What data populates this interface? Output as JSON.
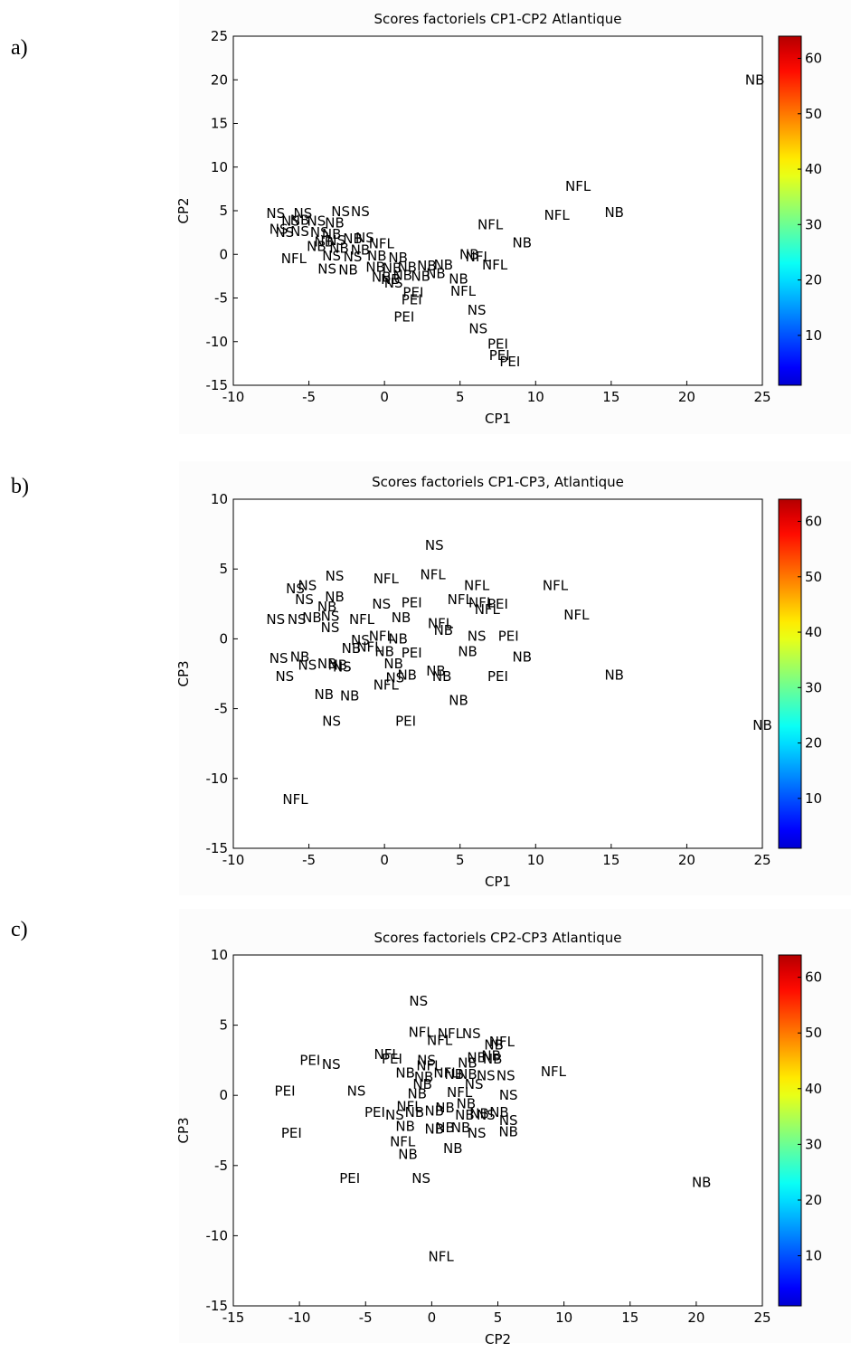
{
  "panels": [
    {
      "letter": "a)"
    },
    {
      "letter": "b)"
    },
    {
      "letter": "c)"
    }
  ],
  "chart_data": [
    {
      "type": "scatter",
      "title": "Scores factoriels CP1-CP2 Atlantique",
      "xlabel": "CP1",
      "ylabel": "CP2",
      "xlim": [
        -10,
        25
      ],
      "ylim": [
        -15,
        25
      ],
      "xticks": [
        -10,
        -5,
        0,
        5,
        10,
        15,
        20,
        25
      ],
      "yticks": [
        -15,
        -10,
        -5,
        0,
        5,
        10,
        15,
        20,
        25
      ],
      "colorbar": {
        "colormap": "jet",
        "range": [
          1,
          64
        ],
        "ticks": [
          10,
          20,
          30,
          40,
          50,
          60
        ]
      },
      "points": [
        {
          "label": "NB",
          "x": 24.5,
          "y": 20
        },
        {
          "label": "NFL",
          "x": 12.8,
          "y": 7.8
        },
        {
          "label": "NFL",
          "x": 11.4,
          "y": 4.5
        },
        {
          "label": "NB",
          "x": 15.2,
          "y": 4.8
        },
        {
          "label": "NFL",
          "x": 7.0,
          "y": 3.4
        },
        {
          "label": "NB",
          "x": 9.1,
          "y": 1.3
        },
        {
          "label": "NB",
          "x": 5.6,
          "y": 0.0
        },
        {
          "label": "NFL",
          "x": 6.2,
          "y": -0.3
        },
        {
          "label": "NFL",
          "x": 7.3,
          "y": -1.2
        },
        {
          "label": "NB",
          "x": 4.9,
          "y": -2.8
        },
        {
          "label": "NFL",
          "x": 5.2,
          "y": -4.2
        },
        {
          "label": "NS",
          "x": 6.1,
          "y": -6.4
        },
        {
          "label": "NS",
          "x": 6.2,
          "y": -8.5
        },
        {
          "label": "PEI",
          "x": 7.5,
          "y": -10.3
        },
        {
          "label": "PEI",
          "x": 7.6,
          "y": -11.6
        },
        {
          "label": "PEI",
          "x": 8.3,
          "y": -12.3
        },
        {
          "label": "NS",
          "x": -7.2,
          "y": 4.7
        },
        {
          "label": "NS",
          "x": -5.4,
          "y": 4.7
        },
        {
          "label": "NS",
          "x": -2.9,
          "y": 4.9
        },
        {
          "label": "NS",
          "x": -1.6,
          "y": 4.9
        },
        {
          "label": "NS",
          "x": -6.2,
          "y": 3.8
        },
        {
          "label": "NB",
          "x": -5.6,
          "y": 3.9
        },
        {
          "label": "NS",
          "x": -4.5,
          "y": 3.8
        },
        {
          "label": "NB",
          "x": -3.3,
          "y": 3.6
        },
        {
          "label": "NS",
          "x": -6.6,
          "y": 2.5
        },
        {
          "label": "NS",
          "x": -7.0,
          "y": 2.9
        },
        {
          "label": "NS",
          "x": -5.6,
          "y": 2.6
        },
        {
          "label": "NS",
          "x": -4.3,
          "y": 2.5
        },
        {
          "label": "NB",
          "x": -3.5,
          "y": 2.3
        },
        {
          "label": "NB",
          "x": -4.0,
          "y": 1.4
        },
        {
          "label": "NS",
          "x": -3.2,
          "y": 1.6
        },
        {
          "label": "NB",
          "x": -2.1,
          "y": 1.8
        },
        {
          "label": "NS",
          "x": -1.3,
          "y": 1.9
        },
        {
          "label": "NFL",
          "x": -0.2,
          "y": 1.2
        },
        {
          "label": "NB",
          "x": -4.5,
          "y": 0.9
        },
        {
          "label": "NB",
          "x": -3.0,
          "y": 0.7
        },
        {
          "label": "NB",
          "x": -1.6,
          "y": 0.5
        },
        {
          "label": "NFL",
          "x": -6.0,
          "y": -0.5
        },
        {
          "label": "NS",
          "x": -3.5,
          "y": -0.2
        },
        {
          "label": "NS",
          "x": -2.1,
          "y": -0.3
        },
        {
          "label": "NB",
          "x": -0.5,
          "y": -0.2
        },
        {
          "label": "NB",
          "x": 0.9,
          "y": -0.4
        },
        {
          "label": "NS",
          "x": -3.8,
          "y": -1.7
        },
        {
          "label": "NB",
          "x": -2.4,
          "y": -1.8
        },
        {
          "label": "NB",
          "x": -0.6,
          "y": -1.5
        },
        {
          "label": "NB",
          "x": 0.5,
          "y": -1.6
        },
        {
          "label": "NB",
          "x": 1.5,
          "y": -1.5
        },
        {
          "label": "NB",
          "x": 2.8,
          "y": -1.3
        },
        {
          "label": "NB",
          "x": 3.9,
          "y": -1.2
        },
        {
          "label": "NB",
          "x": -0.2,
          "y": -2.6
        },
        {
          "label": "NB",
          "x": 0.4,
          "y": -2.9
        },
        {
          "label": "NB",
          "x": 1.2,
          "y": -2.4
        },
        {
          "label": "NB",
          "x": 2.4,
          "y": -2.5
        },
        {
          "label": "NB",
          "x": 3.4,
          "y": -2.2
        },
        {
          "label": "NS",
          "x": 0.6,
          "y": -3.3
        },
        {
          "label": "PEI",
          "x": 1.9,
          "y": -4.4
        },
        {
          "label": "PEI",
          "x": 1.8,
          "y": -5.2
        },
        {
          "label": "PEI",
          "x": 1.3,
          "y": -7.2
        }
      ]
    },
    {
      "type": "scatter",
      "title": "Scores factoriels CP1-CP3, Atlantique",
      "xlabel": "CP1",
      "ylabel": "CP3",
      "xlim": [
        -10,
        25
      ],
      "ylim": [
        -15,
        10
      ],
      "xticks": [
        -10,
        -5,
        0,
        5,
        10,
        15,
        20,
        25
      ],
      "yticks": [
        -15,
        -10,
        -5,
        0,
        5,
        10
      ],
      "colorbar": {
        "colormap": "jet",
        "range": [
          1,
          64
        ],
        "ticks": [
          10,
          20,
          30,
          40,
          50,
          60
        ]
      },
      "points": [
        {
          "label": "NS",
          "x": 3.3,
          "y": 6.7
        },
        {
          "label": "NS",
          "x": -3.3,
          "y": 4.5
        },
        {
          "label": "NFL",
          "x": 0.1,
          "y": 4.3
        },
        {
          "label": "NFL",
          "x": 3.2,
          "y": 4.6
        },
        {
          "label": "NFL",
          "x": 6.1,
          "y": 3.8
        },
        {
          "label": "NFL",
          "x": 11.3,
          "y": 3.8
        },
        {
          "label": "NS",
          "x": -5.9,
          "y": 3.6
        },
        {
          "label": "NS",
          "x": -5.1,
          "y": 3.8
        },
        {
          "label": "NS",
          "x": -5.3,
          "y": 2.8
        },
        {
          "label": "NB",
          "x": -3.3,
          "y": 3.0
        },
        {
          "label": "NB",
          "x": -3.8,
          "y": 2.3
        },
        {
          "label": "NS",
          "x": -0.2,
          "y": 2.5
        },
        {
          "label": "PEI",
          "x": 1.8,
          "y": 2.6
        },
        {
          "label": "NFL",
          "x": 5.0,
          "y": 2.8
        },
        {
          "label": "NFL",
          "x": 6.4,
          "y": 2.6
        },
        {
          "label": "PEI",
          "x": 7.5,
          "y": 2.5
        },
        {
          "label": "NFL",
          "x": 6.8,
          "y": 2.1
        },
        {
          "label": "NFL",
          "x": 12.7,
          "y": 1.7
        },
        {
          "label": "NS",
          "x": -7.2,
          "y": 1.4
        },
        {
          "label": "NS",
          "x": -5.8,
          "y": 1.4
        },
        {
          "label": "NB",
          "x": -4.8,
          "y": 1.5
        },
        {
          "label": "NS",
          "x": -3.6,
          "y": 1.6
        },
        {
          "label": "NFL",
          "x": -1.5,
          "y": 1.4
        },
        {
          "label": "NB",
          "x": 1.1,
          "y": 1.5
        },
        {
          "label": "NFL",
          "x": 3.7,
          "y": 1.1
        },
        {
          "label": "NS",
          "x": -3.6,
          "y": 0.8
        },
        {
          "label": "NB",
          "x": 3.9,
          "y": 0.6
        },
        {
          "label": "NS",
          "x": 6.1,
          "y": 0.2
        },
        {
          "label": "PEI",
          "x": 8.2,
          "y": 0.2
        },
        {
          "label": "NS",
          "x": -1.6,
          "y": -0.1
        },
        {
          "label": "NFL",
          "x": -0.2,
          "y": 0.2
        },
        {
          "label": "NB",
          "x": 0.9,
          "y": 0.0
        },
        {
          "label": "NB",
          "x": -2.2,
          "y": -0.7
        },
        {
          "label": "NFL",
          "x": -1.0,
          "y": -0.6
        },
        {
          "label": "NB",
          "x": 0.0,
          "y": -0.9
        },
        {
          "label": "PEI",
          "x": 1.8,
          "y": -1.0
        },
        {
          "label": "NB",
          "x": 5.5,
          "y": -0.9
        },
        {
          "label": "NB",
          "x": 9.1,
          "y": -1.3
        },
        {
          "label": "NS",
          "x": -7.0,
          "y": -1.4
        },
        {
          "label": "NB",
          "x": -5.6,
          "y": -1.3
        },
        {
          "label": "NS",
          "x": -5.1,
          "y": -1.9
        },
        {
          "label": "NB",
          "x": -3.8,
          "y": -1.8
        },
        {
          "label": "NB",
          "x": -3.1,
          "y": -1.9
        },
        {
          "label": "NS",
          "x": -2.8,
          "y": -2.0
        },
        {
          "label": "NB",
          "x": 0.6,
          "y": -1.8
        },
        {
          "label": "NB",
          "x": 1.5,
          "y": -2.6
        },
        {
          "label": "NB",
          "x": 3.4,
          "y": -2.3
        },
        {
          "label": "NB",
          "x": 3.8,
          "y": -2.7
        },
        {
          "label": "NS",
          "x": -6.6,
          "y": -2.7
        },
        {
          "label": "NS",
          "x": 0.7,
          "y": -2.8
        },
        {
          "label": "PEI",
          "x": 7.5,
          "y": -2.7
        },
        {
          "label": "NB",
          "x": 15.2,
          "y": -2.6
        },
        {
          "label": "NFL",
          "x": 0.1,
          "y": -3.3
        },
        {
          "label": "NB",
          "x": -4.0,
          "y": -4.0
        },
        {
          "label": "NB",
          "x": -2.3,
          "y": -4.1
        },
        {
          "label": "NB",
          "x": 4.9,
          "y": -4.4
        },
        {
          "label": "NS",
          "x": -3.5,
          "y": -5.9
        },
        {
          "label": "PEI",
          "x": 1.4,
          "y": -5.9
        },
        {
          "label": "NB",
          "x": 25.0,
          "y": -6.2
        },
        {
          "label": "NFL",
          "x": -5.9,
          "y": -11.5
        }
      ]
    },
    {
      "type": "scatter",
      "title": "Scores factoriels CP2-CP3 Atlantique",
      "xlabel": "CP2",
      "ylabel": "CP3",
      "xlim": [
        -15,
        25
      ],
      "ylim": [
        -15,
        10
      ],
      "xticks": [
        -15,
        -10,
        -5,
        0,
        5,
        10,
        15,
        20,
        25
      ],
      "yticks": [
        -15,
        -10,
        -5,
        0,
        5,
        10
      ],
      "colorbar": {
        "colormap": "jet",
        "range": [
          1,
          64
        ],
        "ticks": [
          10,
          20,
          30,
          40,
          50,
          60
        ]
      },
      "points": [
        {
          "label": "NS",
          "x": -1.0,
          "y": 6.7
        },
        {
          "label": "NFL",
          "x": -0.8,
          "y": 4.5
        },
        {
          "label": "NFL",
          "x": 0.6,
          "y": 3.9
        },
        {
          "label": "NFL",
          "x": 1.4,
          "y": 4.4
        },
        {
          "label": "NS",
          "x": 3.0,
          "y": 4.4
        },
        {
          "label": "NB",
          "x": 4.7,
          "y": 3.6
        },
        {
          "label": "NFL",
          "x": 5.3,
          "y": 3.8
        },
        {
          "label": "NB",
          "x": 3.4,
          "y": 2.7
        },
        {
          "label": "NB",
          "x": 4.5,
          "y": 2.8
        },
        {
          "label": "PEI",
          "x": -9.2,
          "y": 2.5
        },
        {
          "label": "NS",
          "x": -7.6,
          "y": 2.2
        },
        {
          "label": "NFL",
          "x": -3.4,
          "y": 2.9
        },
        {
          "label": "PEI",
          "x": -3.0,
          "y": 2.6
        },
        {
          "label": "NS",
          "x": -0.4,
          "y": 2.5
        },
        {
          "label": "NFL",
          "x": -0.2,
          "y": 2.1
        },
        {
          "label": "NB",
          "x": 2.7,
          "y": 2.3
        },
        {
          "label": "NB",
          "x": 4.6,
          "y": 2.6
        },
        {
          "label": "NFL",
          "x": 9.2,
          "y": 1.7
        },
        {
          "label": "NB",
          "x": -2.0,
          "y": 1.6
        },
        {
          "label": "NB",
          "x": -0.6,
          "y": 1.3
        },
        {
          "label": "NFL",
          "x": 1.1,
          "y": 1.6
        },
        {
          "label": "NB",
          "x": 1.7,
          "y": 1.5
        },
        {
          "label": "NB",
          "x": 2.7,
          "y": 1.5
        },
        {
          "label": "NS",
          "x": 4.1,
          "y": 1.4
        },
        {
          "label": "NS",
          "x": 5.6,
          "y": 1.4
        },
        {
          "label": "NB",
          "x": -0.7,
          "y": 0.8
        },
        {
          "label": "NS",
          "x": 3.2,
          "y": 0.8
        },
        {
          "label": "PEI",
          "x": -11.1,
          "y": 0.3
        },
        {
          "label": "NS",
          "x": -5.7,
          "y": 0.3
        },
        {
          "label": "NB",
          "x": -1.1,
          "y": 0.1
        },
        {
          "label": "NFL",
          "x": 2.1,
          "y": 0.2
        },
        {
          "label": "NS",
          "x": 5.8,
          "y": 0.0
        },
        {
          "label": "NB",
          "x": 2.6,
          "y": -0.6
        },
        {
          "label": "PEI",
          "x": -4.3,
          "y": -1.2
        },
        {
          "label": "NFL",
          "x": -1.7,
          "y": -0.8
        },
        {
          "label": "NS",
          "x": -2.8,
          "y": -1.4
        },
        {
          "label": "NB",
          "x": -1.3,
          "y": -1.2
        },
        {
          "label": "NB",
          "x": 0.2,
          "y": -1.1
        },
        {
          "label": "NB",
          "x": 1.0,
          "y": -0.9
        },
        {
          "label": "NB",
          "x": 2.5,
          "y": -1.4
        },
        {
          "label": "NB",
          "x": 3.6,
          "y": -1.3
        },
        {
          "label": "NS",
          "x": 4.1,
          "y": -1.4
        },
        {
          "label": "NB",
          "x": 5.1,
          "y": -1.2
        },
        {
          "label": "NS",
          "x": 5.8,
          "y": -1.8
        },
        {
          "label": "NB",
          "x": -2.0,
          "y": -2.2
        },
        {
          "label": "NB",
          "x": 0.2,
          "y": -2.4
        },
        {
          "label": "NB",
          "x": 1.0,
          "y": -2.3
        },
        {
          "label": "NB",
          "x": 2.2,
          "y": -2.3
        },
        {
          "label": "NS",
          "x": 3.4,
          "y": -2.7
        },
        {
          "label": "NB",
          "x": 5.8,
          "y": -2.6
        },
        {
          "label": "PEI",
          "x": -10.6,
          "y": -2.7
        },
        {
          "label": "NFL",
          "x": -2.2,
          "y": -3.3
        },
        {
          "label": "NB",
          "x": -1.8,
          "y": -4.2
        },
        {
          "label": "NB",
          "x": 1.6,
          "y": -3.8
        },
        {
          "label": "PEI",
          "x": -6.2,
          "y": -5.9
        },
        {
          "label": "NS",
          "x": -0.8,
          "y": -5.9
        },
        {
          "label": "NB",
          "x": 20.4,
          "y": -6.2
        },
        {
          "label": "NFL",
          "x": 0.7,
          "y": -11.5
        }
      ]
    }
  ]
}
